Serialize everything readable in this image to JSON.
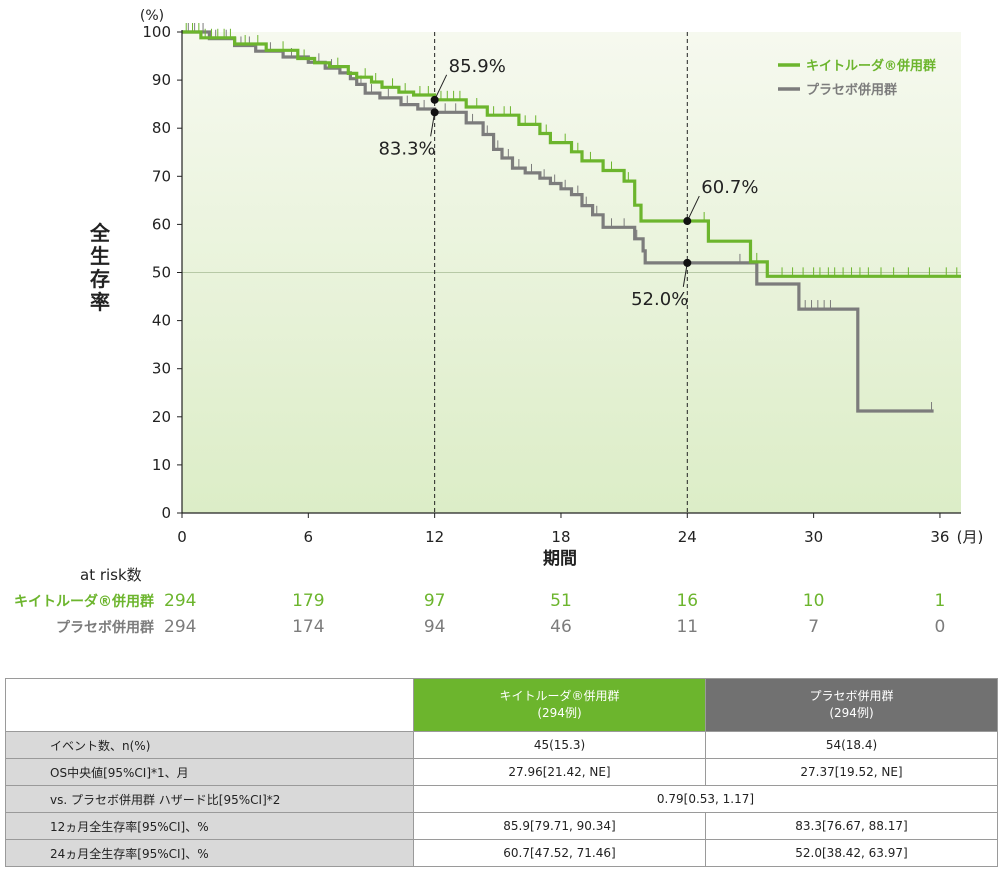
{
  "chart_data": {
    "type": "line",
    "title": "",
    "ylabel": "全生存率",
    "xlabel": "期間",
    "y_unit": "(%)",
    "x_unit": "(月)",
    "xlim": [
      0,
      37
    ],
    "ylim": [
      0,
      100
    ],
    "xticks": [
      0,
      6,
      12,
      18,
      24,
      30,
      36
    ],
    "xtick_labels": [
      "0",
      "6",
      "12",
      "18",
      "24",
      "30",
      "36"
    ],
    "yticks": [
      0,
      10,
      20,
      30,
      40,
      50,
      60,
      70,
      80,
      90,
      100
    ],
    "ytick_labels": [
      "0",
      "10",
      "20",
      "30",
      "40",
      "50",
      "60",
      "70",
      "80",
      "90",
      "100"
    ],
    "reference_lines": {
      "vertical_x": [
        12,
        24
      ],
      "horizontal_y": 50
    },
    "series": [
      {
        "name": "キイトルーダ®併用群",
        "color": "#6cb52d",
        "points": [
          [
            0,
            100
          ],
          [
            0.9,
            98.8
          ],
          [
            2.5,
            97.5
          ],
          [
            4.0,
            96.2
          ],
          [
            5.5,
            94.5
          ],
          [
            6.3,
            93.6
          ],
          [
            7.0,
            92.8
          ],
          [
            7.9,
            91.4
          ],
          [
            8.3,
            90.6
          ],
          [
            9.0,
            89.6
          ],
          [
            9.5,
            88.5
          ],
          [
            10.3,
            87.5
          ],
          [
            11.0,
            86.9
          ],
          [
            12.0,
            85.9
          ],
          [
            13.5,
            84.4
          ],
          [
            14.5,
            82.7
          ],
          [
            16.0,
            80.8
          ],
          [
            17.0,
            78.9
          ],
          [
            17.5,
            77.0
          ],
          [
            18.5,
            75.1
          ],
          [
            19.0,
            73.2
          ],
          [
            20.0,
            71.2
          ],
          [
            21.0,
            69.0
          ],
          [
            21.5,
            64.0
          ],
          [
            21.8,
            60.7
          ],
          [
            24,
            60.7
          ],
          [
            25.0,
            56.5
          ],
          [
            27.0,
            52.2
          ],
          [
            27.8,
            49.2
          ],
          [
            37,
            49.2
          ]
        ],
        "censor_x": [
          0.2,
          0.5,
          0.8,
          1.1,
          1.4,
          1.7,
          2.0,
          2.3,
          3.0,
          3.6,
          4.8,
          5.8,
          7.4,
          8.7,
          9.2,
          10.0,
          10.6,
          11.3,
          11.7,
          12.3,
          12.6,
          12.9,
          13.2,
          14.0,
          14.8,
          15.3,
          15.6,
          16.3,
          16.8,
          17.3,
          18.2,
          18.8,
          19.4,
          20.4,
          21.2,
          24.8,
          27.3,
          28.5,
          29.0,
          29.5,
          30.0,
          30.3,
          30.7,
          31.0,
          31.4,
          31.8,
          32.2,
          32.6,
          33.2,
          33.8,
          34.5,
          35.5,
          36.3,
          36.8
        ]
      },
      {
        "name": "プラセボ併用群",
        "color": "#7c7c7c",
        "points": [
          [
            0,
            100
          ],
          [
            1.3,
            98.6
          ],
          [
            2.5,
            97.2
          ],
          [
            3.5,
            96.0
          ],
          [
            4.8,
            94.8
          ],
          [
            6.0,
            93.7
          ],
          [
            6.8,
            92.5
          ],
          [
            7.5,
            91.5
          ],
          [
            8.0,
            90.3
          ],
          [
            8.3,
            89.1
          ],
          [
            8.7,
            87.3
          ],
          [
            9.4,
            86.3
          ],
          [
            10.4,
            84.9
          ],
          [
            11.2,
            84.0
          ],
          [
            12.0,
            83.3
          ],
          [
            13.5,
            81.1
          ],
          [
            14.3,
            78.7
          ],
          [
            14.8,
            75.6
          ],
          [
            15.2,
            73.8
          ],
          [
            15.7,
            71.7
          ],
          [
            16.3,
            70.7
          ],
          [
            17.0,
            69.6
          ],
          [
            17.5,
            68.5
          ],
          [
            18.0,
            67.4
          ],
          [
            18.5,
            66.2
          ],
          [
            19.0,
            63.9
          ],
          [
            19.5,
            62.0
          ],
          [
            20.0,
            59.4
          ],
          [
            21.5,
            57.0
          ],
          [
            21.9,
            54.5
          ],
          [
            22.0,
            52.0
          ],
          [
            27.0,
            52.0
          ],
          [
            27.3,
            47.6
          ],
          [
            29.2,
            47.6
          ],
          [
            29.3,
            42.4
          ],
          [
            32.0,
            42.4
          ],
          [
            32.1,
            21.2
          ],
          [
            35.7,
            21.2
          ]
        ],
        "censor_x": [
          0.3,
          0.6,
          1.0,
          1.6,
          2.1,
          2.8,
          3.2,
          4.2,
          5.2,
          6.5,
          7.1,
          8.5,
          9.0,
          9.8,
          10.7,
          11.5,
          12.5,
          13.0,
          13.8,
          14.5,
          15.0,
          15.5,
          16.0,
          16.6,
          17.2,
          17.7,
          18.2,
          18.8,
          19.2,
          19.7,
          20.4,
          21.0,
          21.6,
          26.5,
          29.6,
          29.9,
          30.2,
          30.5,
          30.8,
          35.6
        ]
      }
    ],
    "annotations": [
      {
        "label": "85.9%",
        "x": 12,
        "y": 85.9,
        "placement": "upper-right"
      },
      {
        "label": "83.3%",
        "x": 12,
        "y": 83.3,
        "placement": "lower-left"
      },
      {
        "label": "60.7%",
        "x": 24,
        "y": 60.7,
        "placement": "upper-right"
      },
      {
        "label": "52.0%",
        "x": 24,
        "y": 52.0,
        "placement": "lower-left"
      }
    ],
    "legend": {
      "placement": "top-right"
    },
    "at_risk": {
      "title": "at risk数",
      "times": [
        0,
        6,
        12,
        18,
        24,
        30,
        36
      ],
      "rows": [
        {
          "label": "キイトルーダ®併用群",
          "values": [
            "294",
            "179",
            "97",
            "51",
            "16",
            "10",
            "1"
          ]
        },
        {
          "label": "プラセボ併用群",
          "values": [
            "294",
            "174",
            "94",
            "46",
            "11",
            "7",
            "0"
          ]
        }
      ]
    }
  },
  "summary_table": {
    "header_keytruda_name": "キイトルーダ®併用群",
    "header_keytruda_n": "(294例)",
    "header_placebo_name": "プラセボ併用群",
    "header_placebo_n": "(294例)",
    "rows": [
      {
        "label": "イベント数、n(%)",
        "keytruda": "45(15.3)",
        "placebo": "54(18.4)"
      },
      {
        "label": "OS中央値[95%CI]*1、月",
        "keytruda": "27.96[21.42, NE]",
        "placebo": "27.37[19.52, NE]"
      },
      {
        "label": "vs. プラセボ併用群 ハザード比[95%CI]*2",
        "combined": "0.79[0.53, 1.17]"
      },
      {
        "label": "12ヵ月全生存率[95%CI]、%",
        "keytruda": "85.9[79.71, 90.34]",
        "placebo": "83.3[76.67, 88.17]"
      },
      {
        "label": "24ヵ月全生存率[95%CI]、%",
        "keytruda": "60.7[47.52, 71.46]",
        "placebo": "52.0[38.42, 63.97]"
      }
    ]
  }
}
